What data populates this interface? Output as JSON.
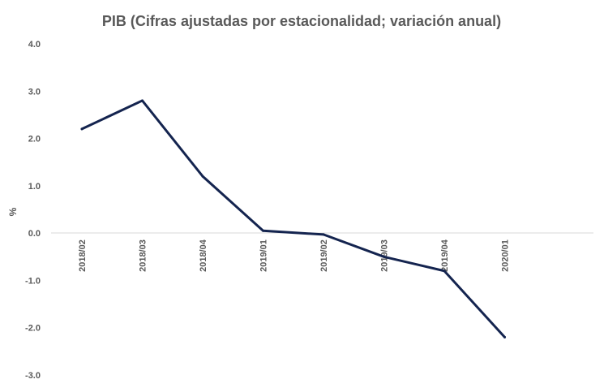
{
  "chart_data": {
    "type": "line",
    "title": "PIB (Cifras ajustadas por estacionalidad; variación anual)",
    "xlabel": "",
    "ylabel": "%",
    "ylim": [
      -3.0,
      4.0
    ],
    "yticks": [
      "4.0",
      "3.0",
      "2.0",
      "1.0",
      "0.0",
      "-1.0",
      "-2.0",
      "-3.0"
    ],
    "ytick_values": [
      4,
      3,
      2,
      1,
      0,
      -1,
      -2,
      -3
    ],
    "categories": [
      "2018/02",
      "2018/03",
      "2018/04",
      "2019/01",
      "2019/02",
      "2019/03",
      "2019/04",
      "2020/01"
    ],
    "series": [
      {
        "name": "PIB",
        "values": [
          2.2,
          2.8,
          1.2,
          0.05,
          -0.03,
          -0.5,
          -0.8,
          -2.2
        ],
        "color": "#14244f"
      }
    ],
    "grid": false,
    "legend": "none"
  }
}
